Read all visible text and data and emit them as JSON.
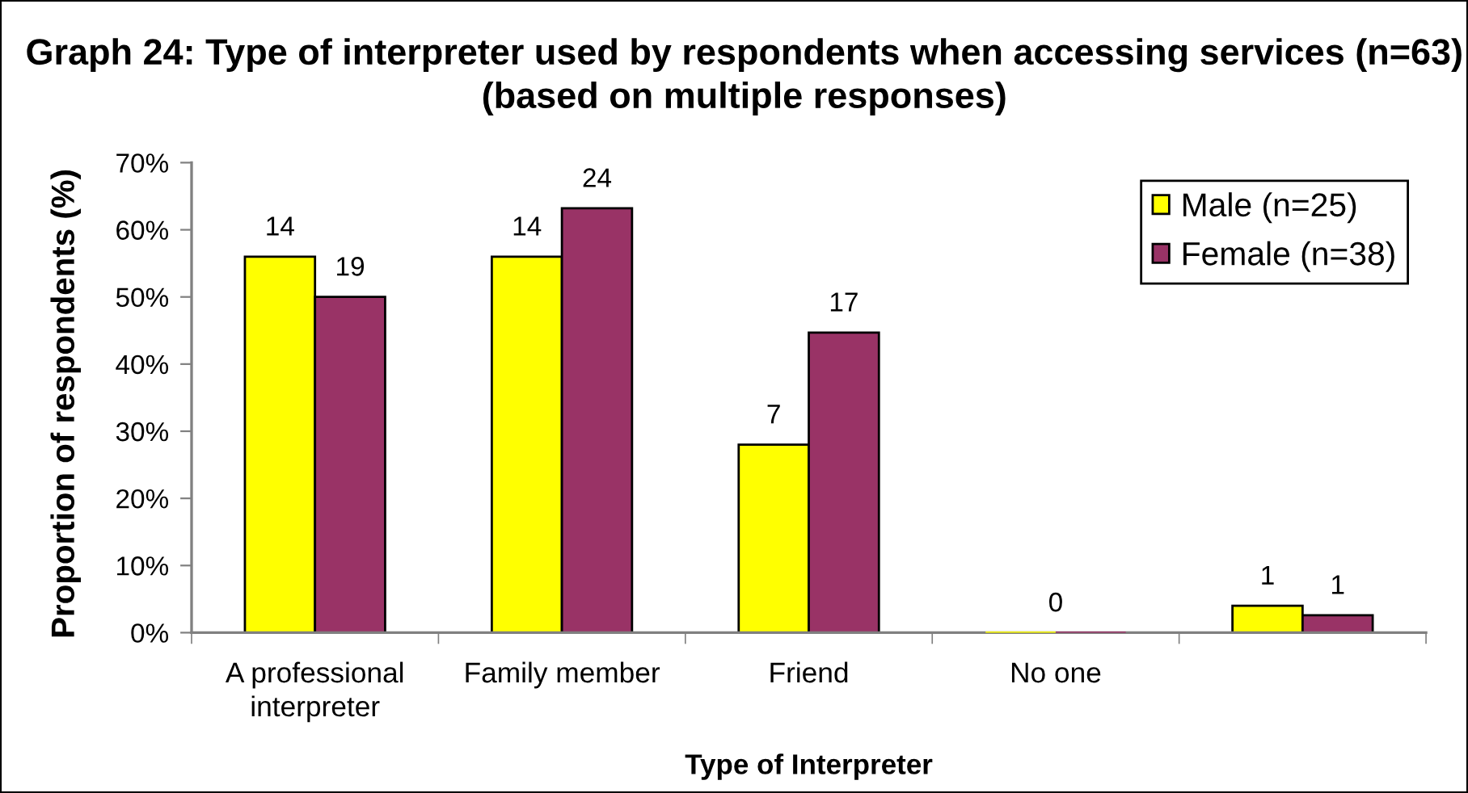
{
  "chart_data": {
    "type": "bar",
    "title": "Graph 24: Type of interpreter used by respondents when accessing services (n=63)\n(based on multiple responses)",
    "xlabel": "Type of Interpreter",
    "ylabel": "Proportion of respondents (%)",
    "categories": [
      "A professional\ninterpreter",
      "Family member",
      "Friend",
      "No one",
      null
    ],
    "series": [
      {
        "name": "Male (n=25)",
        "color": "#ffff00",
        "values": [
          56,
          56,
          28,
          0,
          4
        ]
      },
      {
        "name": "Female (n=38)",
        "color": "#993366",
        "values": [
          50,
          63.2,
          44.7,
          0,
          2.6
        ]
      }
    ],
    "annotations": [
      {
        "text": "14",
        "x": "A professional\ninterpreter",
        "y": 56
      },
      {
        "text": "19",
        "x": "A professional\ninterpreter",
        "y": 50
      },
      {
        "text": "14",
        "x": "Family member",
        "y": 56
      },
      {
        "text": "24",
        "x": "Family member",
        "y": 63.2
      },
      {
        "text": "7",
        "x": "Friend",
        "y": 28
      },
      {
        "text": "17",
        "x": "Friend",
        "y": 44.7
      },
      {
        "text": "0",
        "x": "No one",
        "y": 0
      },
      "1",
      "1"
    ],
    "ylim": [
      0,
      70
    ],
    "yticks": [
      {
        "value": 0,
        "label": "0%"
      },
      {
        "value": 10,
        "label": "10%"
      },
      {
        "value": 20,
        "label": "20%"
      },
      {
        "value": 30,
        "label": "30%"
      },
      {
        "value": 40,
        "label": "40%"
      },
      {
        "value": 50,
        "label": "50%"
      },
      {
        "value": 60,
        "label": "60%"
      },
      {
        "value": 70,
        "label": "70%"
      }
    ],
    "grid": false,
    "legend": "top right"
  }
}
